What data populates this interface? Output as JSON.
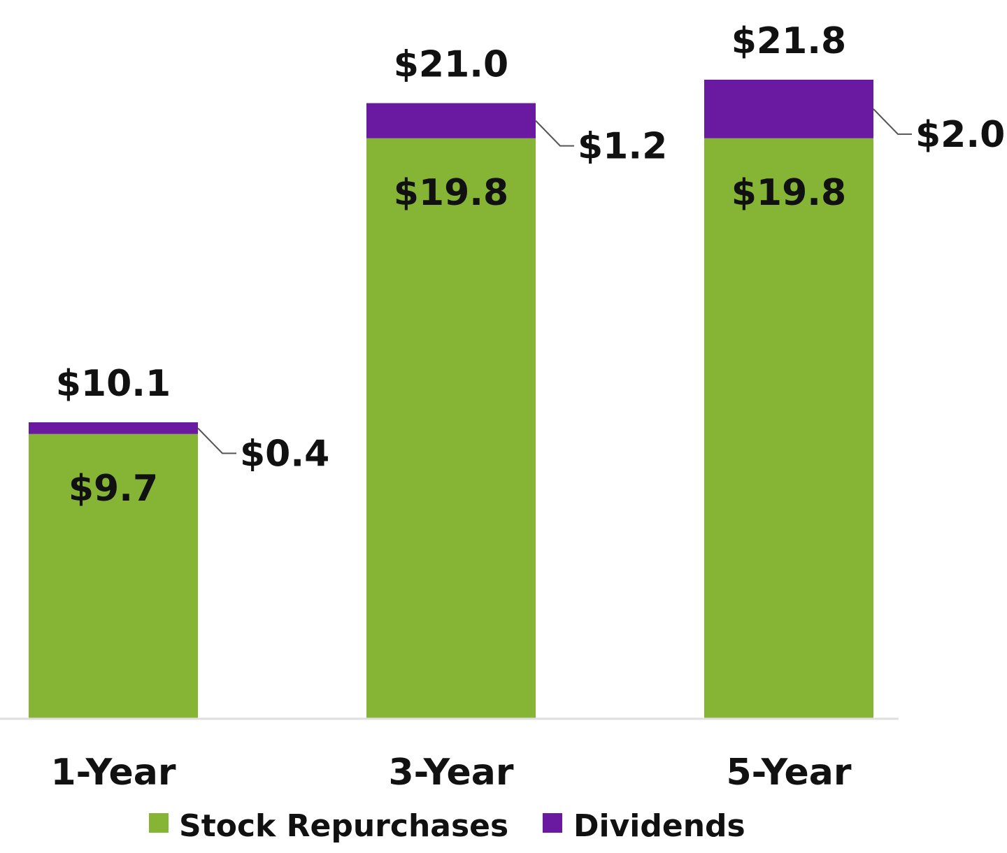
{
  "colors": {
    "stock_repurchases": "#86b535",
    "dividends": "#6a1aa0",
    "baseline": "#dedede",
    "leader_line": "#555555",
    "text": "#111111"
  },
  "chart_data": {
    "type": "bar",
    "stacked": true,
    "categories": [
      "1-Year",
      "3-Year",
      "5-Year"
    ],
    "series": [
      {
        "name": "Stock Repurchases",
        "color": "#86b535",
        "values": [
          9.7,
          19.8,
          19.8
        ],
        "labels": [
          "$9.7",
          "$19.8",
          "$19.8"
        ]
      },
      {
        "name": "Dividends",
        "color": "#6a1aa0",
        "values": [
          0.4,
          1.2,
          2.0
        ],
        "labels": [
          "$0.4",
          "$1.2",
          "$2.0"
        ]
      }
    ],
    "totals": [
      10.1,
      21.0,
      21.8
    ],
    "total_labels": [
      "$10.1",
      "$21.0",
      "$21.8"
    ],
    "ylim": [
      0,
      21.8
    ],
    "grid": false,
    "legend": {
      "position": "bottom",
      "items": [
        "Stock Repurchases",
        "Dividends"
      ]
    },
    "title": "",
    "xlabel": "",
    "ylabel": ""
  }
}
